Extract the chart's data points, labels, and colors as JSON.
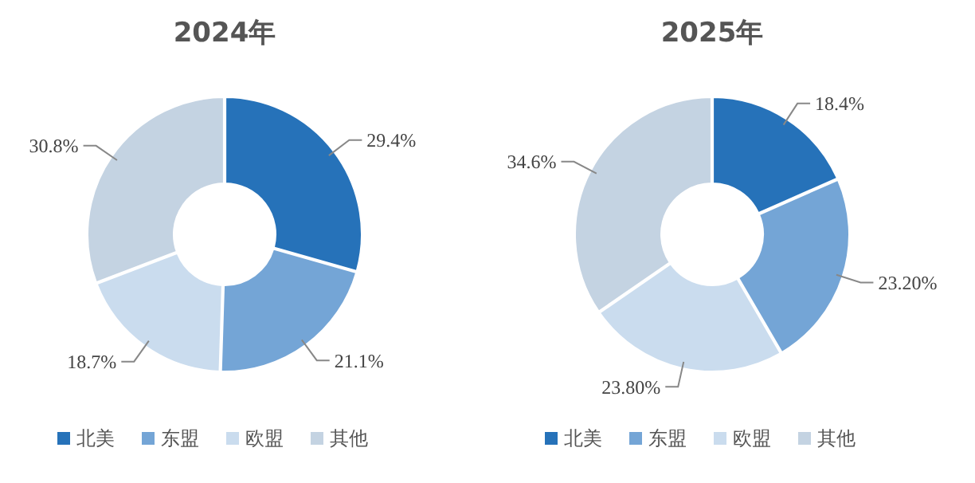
{
  "chart_data": [
    {
      "type": "donut",
      "title": "2024年",
      "categories": [
        "北美",
        "东盟",
        "欧盟",
        "其他"
      ],
      "values": [
        29.4,
        21.1,
        18.7,
        30.8
      ],
      "value_labels": [
        "29.4%",
        "21.1%",
        "18.7%",
        "30.8%"
      ],
      "colors": [
        "#2672b9",
        "#74a5d6",
        "#cadcee",
        "#c4d3e2"
      ],
      "legend": "bottom"
    },
    {
      "type": "donut",
      "title": "2025年",
      "categories": [
        "北美",
        "东盟",
        "欧盟",
        "其他"
      ],
      "values": [
        18.4,
        23.2,
        23.8,
        34.6
      ],
      "value_labels": [
        "18.4%",
        "23.20%",
        "23.80%",
        "34.6%"
      ],
      "colors": [
        "#2672b9",
        "#74a5d6",
        "#cadcee",
        "#c4d3e2"
      ],
      "legend": "bottom"
    }
  ]
}
